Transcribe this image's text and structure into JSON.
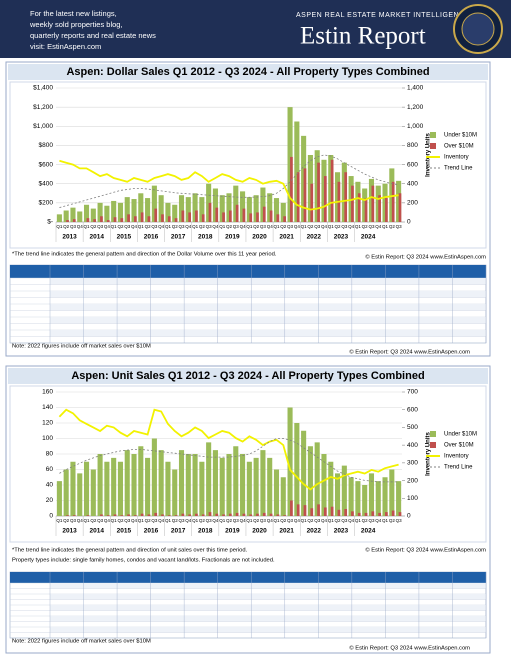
{
  "header": {
    "promo": [
      "For the latest new listings,",
      "weekly sold properties blog,",
      "quarterly reports and real estate news",
      "visit: EstinAspen.com"
    ],
    "tagline": "ASPEN REAL ESTATE MARKET INTELLIGENCE",
    "brand": "Estin Report"
  },
  "chart_data": [
    {
      "type": "bar",
      "title": "Aspen:  Dollar Sales Q1 2012 - Q3 2024 -  All Property Types Combined",
      "y2_label": "Inventory Units",
      "categories": [
        "Q1",
        "Q2",
        "Q3",
        "Q4",
        "Q1",
        "Q2",
        "Q3",
        "Q4",
        "Q1",
        "Q2",
        "Q3",
        "Q4",
        "Q1",
        "Q2",
        "Q3",
        "Q4",
        "Q1",
        "Q2",
        "Q3",
        "Q4",
        "Q1",
        "Q2",
        "Q3",
        "Q4",
        "Q1",
        "Q2",
        "Q3",
        "Q4",
        "Q1",
        "Q2",
        "Q3",
        "Q4",
        "Q1",
        "Q2",
        "Q3",
        "Q4",
        "Q1",
        "Q2",
        "Q3",
        "Q4",
        "Q1",
        "Q2",
        "Q3",
        "Q4",
        "Q1",
        "Q2",
        "Q3",
        "Q4",
        "Q1",
        "Q2",
        "Q3"
      ],
      "year_labels": [
        "2013",
        "2014",
        "2015",
        "2016",
        "2017",
        "2018",
        "2019",
        "2020",
        "2021",
        "2022",
        "2023",
        "2024"
      ],
      "ylim": [
        0,
        1400
      ],
      "yticks": [
        {
          "value": 0,
          "label": "$-"
        },
        {
          "value": 200,
          "label": "$200"
        },
        {
          "value": 400,
          "label": "$400"
        },
        {
          "value": 600,
          "label": "$600"
        },
        {
          "value": 800,
          "label": "$800"
        },
        {
          "value": 1000,
          "label": "$1,000"
        },
        {
          "value": 1200,
          "label": "$1,200"
        },
        {
          "value": 1400,
          "label": "$1,400"
        }
      ],
      "y2lim": [
        0,
        1400
      ],
      "y2ticks": [
        0,
        200,
        400,
        600,
        800,
        {
          "value": 1000,
          "label": "1,000"
        },
        {
          "value": 1200,
          "label": "1,200"
        },
        {
          "value": 1400,
          "label": "1,400"
        }
      ],
      "series": [
        {
          "name": "Under $10M",
          "color": "#9bbb59",
          "mark": "bar",
          "values": [
            80,
            120,
            150,
            110,
            180,
            140,
            200,
            170,
            220,
            200,
            260,
            240,
            300,
            250,
            380,
            280,
            200,
            180,
            280,
            260,
            300,
            260,
            400,
            350,
            280,
            300,
            380,
            320,
            260,
            280,
            360,
            300,
            250,
            200,
            1200,
            1050,
            900,
            700,
            750,
            650,
            700,
            520,
            620,
            480,
            420,
            350,
            450,
            380,
            400,
            560,
            430
          ]
        },
        {
          "name": "Over $10M",
          "color": "#c0504d",
          "mark": "bar",
          "values": [
            0,
            20,
            30,
            0,
            40,
            30,
            60,
            20,
            50,
            40,
            80,
            60,
            100,
            60,
            140,
            80,
            60,
            40,
            120,
            100,
            120,
            80,
            200,
            150,
            100,
            120,
            180,
            140,
            90,
            100,
            160,
            120,
            80,
            60,
            680,
            520,
            560,
            400,
            620,
            480,
            650,
            420,
            520,
            380,
            300,
            250,
            380,
            280,
            250,
            420,
            300
          ]
        },
        {
          "name": "Inventory",
          "color": "#f2f200",
          "mark": "line",
          "axis": "y2",
          "values": [
            640,
            620,
            600,
            560,
            560,
            520,
            480,
            500,
            460,
            440,
            420,
            460,
            440,
            420,
            460,
            480,
            500,
            480,
            440,
            460,
            520,
            480,
            420,
            460,
            500,
            480,
            440,
            420,
            460,
            440,
            400,
            420,
            430,
            400,
            250,
            180,
            150,
            130,
            140,
            160,
            200,
            210,
            220,
            230,
            250,
            230,
            260,
            240,
            260,
            270,
            280
          ]
        },
        {
          "name": "Trend Line",
          "color": "#808080",
          "mark": "line",
          "style": "dashed",
          "values": [
            150,
            170,
            190,
            210,
            230,
            250,
            270,
            290,
            310,
            330,
            340,
            350,
            350,
            345,
            335,
            325,
            315,
            305,
            300,
            295,
            290,
            285,
            280,
            275,
            270,
            265,
            260,
            258,
            258,
            260,
            265,
            275,
            300,
            350,
            420,
            500,
            580,
            640,
            680,
            700,
            690,
            660,
            620,
            580,
            540,
            500,
            470,
            440,
            420,
            400,
            390
          ]
        }
      ],
      "footnote": "*The trend line indicates the general pattern and direction of the Dollar Volume over this 11 year period.",
      "credit": "© Estin Report: Q3 2024 www.EstinAspen.com",
      "note": "Note: 2022 figures include off market sales over $10M"
    },
    {
      "type": "bar",
      "title": "Aspen:  Unit Sales Q1 2012  - Q3 2024 -  All Property Types Combined",
      "y2_label": "Inventory Units",
      "categories": [
        "Q1",
        "Q2",
        "Q3",
        "Q4",
        "Q1",
        "Q2",
        "Q3",
        "Q4",
        "Q1",
        "Q2",
        "Q3",
        "Q4",
        "Q1",
        "Q2",
        "Q3",
        "Q4",
        "Q1",
        "Q2",
        "Q3",
        "Q4",
        "Q1",
        "Q2",
        "Q3",
        "Q4",
        "Q1",
        "Q2",
        "Q3",
        "Q4",
        "Q1",
        "Q2",
        "Q3",
        "Q4",
        "Q1",
        "Q2",
        "Q3",
        "Q4",
        "Q1",
        "Q2",
        "Q3",
        "Q4",
        "Q1",
        "Q2",
        "Q3",
        "Q4",
        "Q1",
        "Q2",
        "Q3",
        "Q4",
        "Q1",
        "Q2",
        "Q3"
      ],
      "year_labels": [
        "2013",
        "2014",
        "2015",
        "2016",
        "2017",
        "2018",
        "2019",
        "2020",
        "2021",
        "2022",
        "2023",
        "2024"
      ],
      "ylim": [
        0,
        160
      ],
      "yticks": [
        0,
        20,
        40,
        60,
        80,
        100,
        120,
        140,
        160
      ],
      "y2lim": [
        0,
        700
      ],
      "y2ticks": [
        0,
        100,
        200,
        300,
        400,
        500,
        600,
        700
      ],
      "series": [
        {
          "name": "Under $10M",
          "color": "#9bbb59",
          "mark": "bar",
          "values": [
            45,
            60,
            70,
            55,
            70,
            60,
            80,
            70,
            75,
            70,
            85,
            80,
            90,
            75,
            100,
            85,
            70,
            60,
            85,
            80,
            80,
            70,
            95,
            85,
            75,
            80,
            90,
            80,
            70,
            75,
            85,
            75,
            60,
            50,
            140,
            120,
            110,
            90,
            95,
            80,
            70,
            55,
            65,
            50,
            45,
            40,
            55,
            45,
            50,
            60,
            45
          ]
        },
        {
          "name": "Over $10M",
          "color": "#c0504d",
          "mark": "bar",
          "values": [
            0,
            1,
            1,
            0,
            1,
            0,
            2,
            1,
            2,
            1,
            2,
            1,
            3,
            2,
            4,
            2,
            1,
            1,
            3,
            2,
            3,
            2,
            5,
            3,
            2,
            3,
            4,
            3,
            2,
            3,
            4,
            3,
            2,
            1,
            20,
            15,
            14,
            10,
            15,
            11,
            12,
            8,
            9,
            6,
            4,
            4,
            6,
            4,
            5,
            7,
            5
          ]
        },
        {
          "name": "Inventory",
          "color": "#f2f200",
          "mark": "line",
          "axis": "y2",
          "values": [
            560,
            600,
            580,
            540,
            520,
            500,
            480,
            510,
            500,
            470,
            450,
            480,
            470,
            460,
            600,
            590,
            520,
            480,
            450,
            470,
            500,
            480,
            440,
            460,
            480,
            470,
            440,
            420,
            450,
            430,
            400,
            420,
            430,
            400,
            260,
            220,
            180,
            150,
            180,
            200,
            220,
            210,
            230,
            240,
            250,
            240,
            260,
            250,
            270,
            280,
            290
          ]
        },
        {
          "name": "Trend Line",
          "color": "#808080",
          "mark": "line",
          "style": "dashed",
          "values": [
            55,
            60,
            64,
            68,
            72,
            75,
            78,
            80,
            82,
            84,
            85,
            86,
            86,
            85,
            84,
            83,
            82,
            81,
            80,
            79,
            78,
            77,
            76,
            76,
            76,
            76,
            77,
            78,
            80,
            84,
            90,
            96,
            100,
            100,
            98,
            94,
            88,
            82,
            76,
            70,
            64,
            58,
            54,
            50,
            48,
            46,
            45,
            44,
            44,
            44,
            44
          ]
        }
      ],
      "footnote": "*The trend line indicates the general pattern and direction of unit sales over this time period.",
      "credit": "© Estin Report: Q3 2024 www.EstinAspen.com",
      "footnote2": "Property types include: single family homes, condos and vacant land/lots. Fractionals are not included.",
      "note": "Note: 2022 figures include off market sales over $10M"
    }
  ]
}
